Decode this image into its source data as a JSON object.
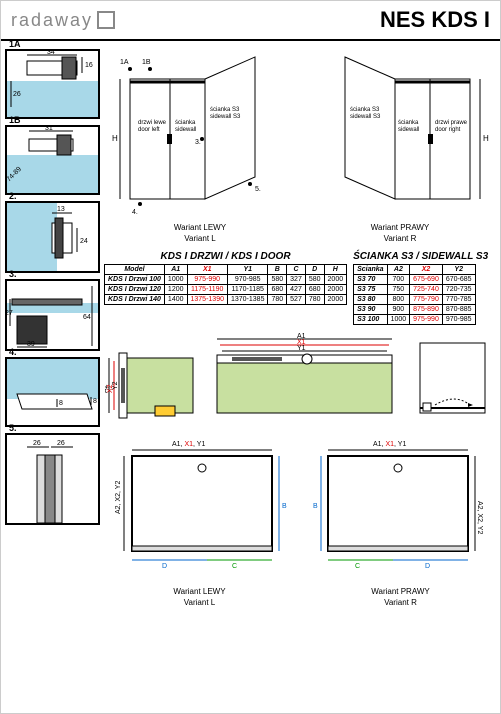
{
  "brand": "radaway",
  "product_title": "NES KDS I",
  "details": [
    {
      "id": "1A",
      "dims": [
        "34",
        "16",
        "26"
      ]
    },
    {
      "id": "1B",
      "dims": [
        "31",
        "74-89"
      ]
    },
    {
      "id": "2.",
      "dims": [
        "13",
        "24"
      ]
    },
    {
      "id": "3.",
      "dims": [
        "39",
        "27",
        "64"
      ]
    },
    {
      "id": "4.",
      "dims": [
        "8",
        "8"
      ]
    },
    {
      "id": "5.",
      "dims": [
        "26",
        "26"
      ]
    }
  ],
  "iso": {
    "height_label": "H",
    "left": {
      "door_l1": "drzwi lewe",
      "door_l2": "door left",
      "sw1_l1": "ścianka",
      "sw1_l2": "sidewall",
      "sw2_l1": "ścianka S3",
      "sw2_l2": "sidewall S3",
      "caption1": "Wariant LEWY",
      "caption2": "Variant L",
      "callouts": [
        "1A",
        "1B",
        "2.",
        "3.",
        "4.",
        "5."
      ]
    },
    "right": {
      "door_l1": "drzwi prawe",
      "door_l2": "door right",
      "sw1_l1": "ścianka",
      "sw1_l2": "sidewall",
      "sw2_l1": "ścianka S3",
      "sw2_l2": "sidewall S3",
      "caption1": "Wariant PRAWY",
      "caption2": "Variant R"
    }
  },
  "door_table": {
    "title": "KDS I DRZWI / KDS I DOOR",
    "headers": [
      "Model",
      "A1",
      "X1",
      "Y1",
      "B",
      "C",
      "D",
      "H"
    ],
    "rows": [
      [
        "KDS I Drzwi 100",
        "1000",
        "975-990",
        "970-985",
        "580",
        "327",
        "580",
        "2000"
      ],
      [
        "KDS I Drzwi 120",
        "1200",
        "1175-1190",
        "1170-1185",
        "680",
        "427",
        "680",
        "2000"
      ],
      [
        "KDS I Drzwi 140",
        "1400",
        "1375-1390",
        "1370-1385",
        "780",
        "527",
        "780",
        "2000"
      ]
    ]
  },
  "sidewall_table": {
    "title": "ŚCIANKA S3 / SIDEWALL S3",
    "headers": [
      "Ścianka",
      "A2",
      "X2",
      "Y2"
    ],
    "rows": [
      [
        "S3 70",
        "700",
        "675-690",
        "670-685"
      ],
      [
        "S3 75",
        "750",
        "725-740",
        "720-735"
      ],
      [
        "S3 80",
        "800",
        "775-790",
        "770-785"
      ],
      [
        "S3 90",
        "900",
        "875-890",
        "870-885"
      ],
      [
        "S3 100",
        "1000",
        "975-990",
        "970-985"
      ]
    ]
  },
  "cross": {
    "left_labels": [
      "A2",
      "X2",
      "Y2"
    ],
    "right_labels": [
      "A1",
      "X1",
      "Y1"
    ]
  },
  "plan": {
    "top_dims": "A1, X1, Y1",
    "side_dims": "A2, X2, Y2",
    "bottom_dims_l": [
      "D",
      "C"
    ],
    "bottom_dims_r": [
      "C",
      "D"
    ],
    "b_label": "B",
    "left_caption1": "Wariant LEWY",
    "left_caption2": "Variant L",
    "right_caption1": "Wariant PRAWY",
    "right_caption2": "Variant R"
  },
  "colors": {
    "glass": "#a8d8e8",
    "accent_green": "#c8e0a0",
    "red": "#d00000",
    "blue": "#0066cc",
    "yellow": "#ffcc33"
  }
}
